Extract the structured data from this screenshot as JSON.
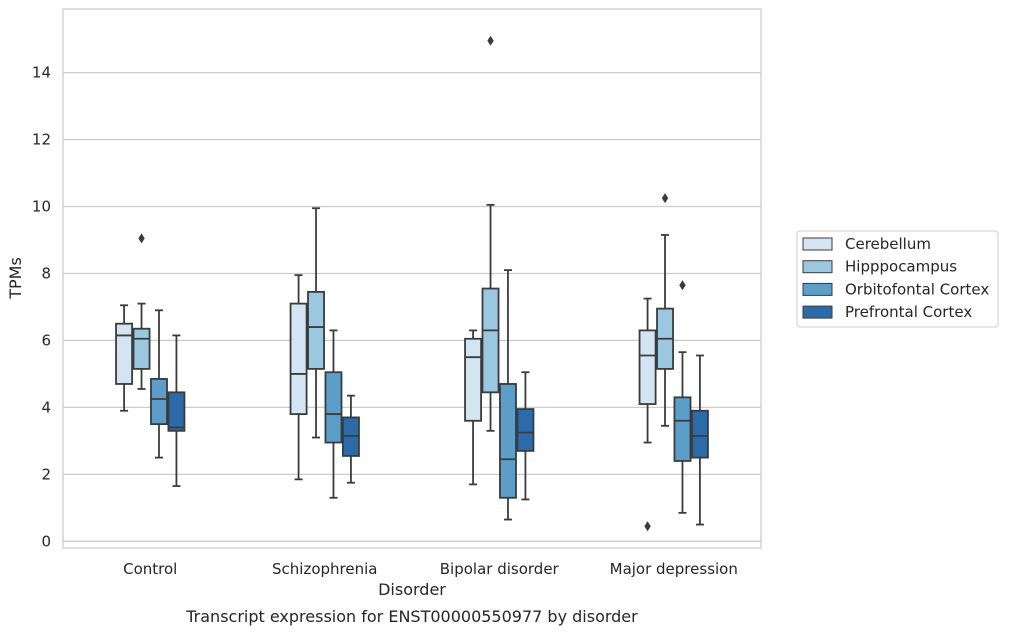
{
  "chart_data": {
    "type": "box",
    "title": "",
    "caption": "Transcript expression for ENST00000550977 by disorder",
    "xlabel": "Disorder",
    "ylabel": "TPMs",
    "ylim": [
      -0.2,
      15.9
    ],
    "yticks": [
      0,
      2,
      4,
      6,
      8,
      10,
      12,
      14
    ],
    "grid": true,
    "legend_position": "right",
    "categories": [
      "Control",
      "Schizophrenia",
      "Bipolar disorder",
      "Major depression"
    ],
    "series": [
      {
        "name": "Cerebellum",
        "color": "#d3e4f3",
        "boxes": [
          {
            "whislo": 3.9,
            "q1": 4.7,
            "med": 6.15,
            "q3": 6.5,
            "whishi": 7.05,
            "fliers": []
          },
          {
            "whislo": 1.85,
            "q1": 3.8,
            "med": 5.0,
            "q3": 7.1,
            "whishi": 7.95,
            "fliers": []
          },
          {
            "whislo": 1.7,
            "q1": 3.6,
            "med": 5.5,
            "q3": 6.05,
            "whishi": 6.3,
            "fliers": []
          },
          {
            "whislo": 2.95,
            "q1": 4.1,
            "med": 5.55,
            "q3": 6.3,
            "whishi": 7.25,
            "fliers": [
              0.45
            ]
          }
        ]
      },
      {
        "name": "Hipppocampus",
        "color": "#9ac8e0",
        "boxes": [
          {
            "whislo": 4.55,
            "q1": 5.15,
            "med": 6.05,
            "q3": 6.35,
            "whishi": 7.1,
            "fliers": [
              9.05
            ]
          },
          {
            "whislo": 3.1,
            "q1": 5.15,
            "med": 6.4,
            "q3": 7.45,
            "whishi": 9.95,
            "fliers": []
          },
          {
            "whislo": 3.3,
            "q1": 4.45,
            "med": 6.3,
            "q3": 7.55,
            "whishi": 10.05,
            "fliers": [
              14.95
            ]
          },
          {
            "whislo": 3.45,
            "q1": 5.15,
            "med": 6.05,
            "q3": 6.95,
            "whishi": 9.15,
            "fliers": [
              10.25
            ]
          }
        ]
      },
      {
        "name": "Orbitofontal Cortex",
        "color": "#5a9ec9",
        "boxes": [
          {
            "whislo": 2.5,
            "q1": 3.5,
            "med": 4.25,
            "q3": 4.85,
            "whishi": 6.9,
            "fliers": []
          },
          {
            "whislo": 1.3,
            "q1": 2.95,
            "med": 3.8,
            "q3": 5.05,
            "whishi": 6.3,
            "fliers": []
          },
          {
            "whislo": 0.65,
            "q1": 1.3,
            "med": 2.45,
            "q3": 4.7,
            "whishi": 8.1,
            "fliers": []
          },
          {
            "whislo": 0.85,
            "q1": 2.4,
            "med": 3.6,
            "q3": 4.3,
            "whishi": 5.65,
            "fliers": [
              7.65
            ]
          }
        ]
      },
      {
        "name": "Prefrontal Cortex",
        "color": "#2b6ba9",
        "boxes": [
          {
            "whislo": 1.65,
            "q1": 3.3,
            "med": 3.4,
            "q3": 4.45,
            "whishi": 6.15,
            "fliers": []
          },
          {
            "whislo": 1.75,
            "q1": 2.55,
            "med": 3.15,
            "q3": 3.7,
            "whishi": 4.35,
            "fliers": []
          },
          {
            "whislo": 1.25,
            "q1": 2.7,
            "med": 3.25,
            "q3": 3.95,
            "whishi": 5.05,
            "fliers": []
          },
          {
            "whislo": 0.5,
            "q1": 2.5,
            "med": 3.15,
            "q3": 3.9,
            "whishi": 5.55,
            "fliers": []
          }
        ]
      }
    ]
  }
}
